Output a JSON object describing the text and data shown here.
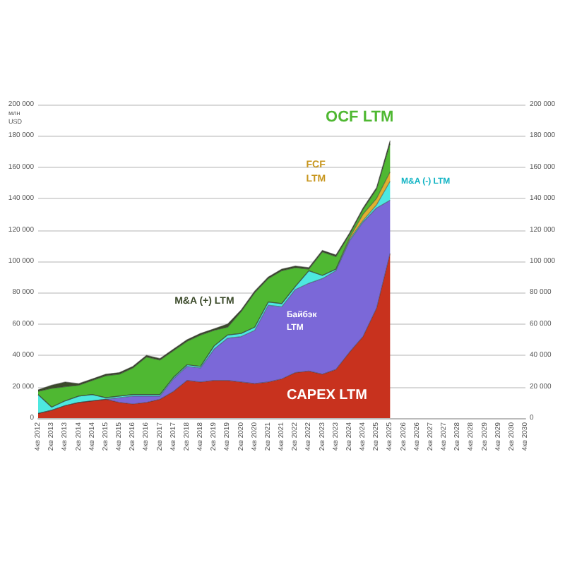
{
  "chart_data": {
    "type": "area",
    "stacked": true,
    "ylabel": "млн USD",
    "categories": [
      "4кв 2012",
      "2кв 2013",
      "4кв 2013",
      "2кв 2014",
      "4кв 2014",
      "2кв 2015",
      "4кв 2015",
      "2кв 2016",
      "4кв 2016",
      "2кв 2017",
      "4кв 2017",
      "2кв 2018",
      "4кв 2018",
      "2кв 2019",
      "4кв 2019",
      "2кв 2020",
      "4кв 2020",
      "2кв 2021",
      "4кв 2021",
      "2кв 2022",
      "4кв 2022",
      "2кв 2023",
      "4кв 2023",
      "2кв 2024",
      "4кв 2024",
      "2кв 2025",
      "4кв 2025",
      "2кв 2026",
      "4кв 2026",
      "2кв 2027",
      "4кв 2027",
      "2кв 2028",
      "4кв 2028",
      "2кв 2029",
      "4кв 2029",
      "2кв 2030",
      "4кв 2030"
    ],
    "series": [
      {
        "name": "CAPEX LTM",
        "color": "#c8321e",
        "values": [
          3000,
          5000,
          8000,
          10000,
          11000,
          12000,
          10000,
          9000,
          10000,
          12000,
          17000,
          24000,
          23000,
          24000,
          24000,
          23000,
          22000,
          23000,
          25000,
          29000,
          30000,
          28000,
          31000,
          42000,
          52000,
          70000,
          105000,
          null,
          null,
          null,
          null,
          null,
          null,
          null,
          null,
          null,
          null
        ]
      },
      {
        "name": "Байбэк LTM",
        "color": "#7b68d8",
        "values": [
          0,
          0,
          0,
          0,
          0,
          0,
          3000,
          5000,
          4000,
          2000,
          8000,
          9000,
          9000,
          20000,
          27000,
          29000,
          34000,
          49000,
          46000,
          53000,
          56000,
          61000,
          63000,
          71000,
          73000,
          64000,
          34000,
          null,
          null,
          null,
          null,
          null,
          null,
          null,
          null,
          null,
          null
        ]
      },
      {
        "name": "M&A (-) LTM",
        "color": "#4de8e0",
        "values": [
          12000,
          2000,
          3000,
          4000,
          4000,
          1000,
          1000,
          1000,
          1000,
          1000,
          1000,
          1000,
          1000,
          2000,
          2000,
          2000,
          2000,
          2000,
          2000,
          2000,
          8000,
          2000,
          1000,
          1000,
          1000,
          2000,
          12000,
          null,
          null,
          null,
          null,
          null,
          null,
          null,
          null,
          null,
          null
        ]
      },
      {
        "name": "FCF LTM",
        "color": "#e0b030",
        "values": [
          0,
          0,
          0,
          0,
          0,
          0,
          0,
          0,
          0,
          0,
          0,
          0,
          0,
          0,
          0,
          0,
          0,
          0,
          0,
          0,
          0,
          0,
          0,
          1000,
          4000,
          4000,
          6000,
          null,
          null,
          null,
          null,
          null,
          null,
          null,
          null,
          null,
          null
        ]
      },
      {
        "name": "OCF LTM",
        "color": "#4fb832",
        "values": [
          2000,
          12000,
          9000,
          7000,
          9000,
          14000,
          14000,
          17000,
          24000,
          22000,
          17000,
          15000,
          20000,
          10000,
          5000,
          14000,
          22000,
          15000,
          21000,
          12000,
          1000,
          15000,
          8000,
          2000,
          3000,
          6000,
          18000,
          null,
          null,
          null,
          null,
          null,
          null,
          null,
          null,
          null,
          null
        ]
      },
      {
        "name": "M&A (+) LTM",
        "color": "#3b4a2a",
        "values": [
          1000,
          2000,
          3000,
          1000,
          1000,
          1000,
          1000,
          1000,
          1000,
          1000,
          1000,
          1000,
          1000,
          1000,
          2000,
          1000,
          1000,
          1000,
          1000,
          1000,
          1000,
          1000,
          1000,
          1000,
          1000,
          1000,
          2000,
          null,
          null,
          null,
          null,
          null,
          null,
          null,
          null,
          null,
          null
        ]
      }
    ],
    "ylim": [
      0,
      200000
    ],
    "yticks": [
      {
        "value": 0,
        "label": "0"
      },
      {
        "value": 20000,
        "label": "20 000"
      },
      {
        "value": 40000,
        "label": "40 000"
      },
      {
        "value": 60000,
        "label": "60 000"
      },
      {
        "value": 80000,
        "label": "80 000"
      },
      {
        "value": 100000,
        "label": "100 000"
      },
      {
        "value": 120000,
        "label": "120 000"
      },
      {
        "value": 140000,
        "label": "140 000"
      },
      {
        "value": 160000,
        "label": "160 000"
      },
      {
        "value": 180000,
        "label": "180 000"
      },
      {
        "value": 200000,
        "label": "200 000"
      }
    ],
    "y2lim": [
      0,
      200000
    ],
    "y2ticks": [
      {
        "value": 0,
        "label": "0"
      },
      {
        "value": 20000,
        "label": "20 000"
      },
      {
        "value": 40000,
        "label": "40 000"
      },
      {
        "value": 60000,
        "label": "60 000"
      },
      {
        "value": 80000,
        "label": "80 000"
      },
      {
        "value": 100000,
        "label": "100 000"
      },
      {
        "value": 120000,
        "label": "120 000"
      },
      {
        "value": 140000,
        "label": "140 000"
      },
      {
        "value": 160000,
        "label": "160 000"
      },
      {
        "value": 180000,
        "label": "180 000"
      },
      {
        "value": 200000,
        "label": "200 000"
      }
    ],
    "grid": "y",
    "legend": false
  }
}
